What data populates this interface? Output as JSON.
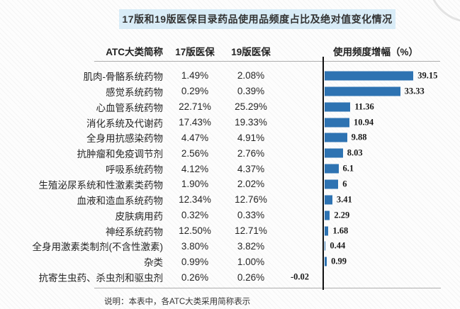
{
  "title": "17版和19版医保目录药品使用品频度占比及绝对值变化情况",
  "footnote": "说明：本表中，各ATC大类采用简称表示",
  "colors": {
    "bar": "#2e73b2",
    "title_background": "#d9ecf7",
    "axis": "#111111",
    "rule": "#adadad"
  },
  "table": {
    "headers": {
      "category": "ATC大类简称",
      "v17": "17版医保",
      "v19": "19版医保",
      "chart": "使用频度增幅（%）"
    },
    "rows": [
      {
        "category": "肌肉-骨骼系统药物",
        "v17": "1.49%",
        "v19": "2.08%",
        "delta": 39.15,
        "delta_label": "39.15"
      },
      {
        "category": "感觉系统药物",
        "v17": "0.29%",
        "v19": "0.39%",
        "delta": 33.33,
        "delta_label": "33.33"
      },
      {
        "category": "心血管系统药物",
        "v17": "22.71%",
        "v19": "25.29%",
        "delta": 11.36,
        "delta_label": "11.36"
      },
      {
        "category": "消化系统及代谢药",
        "v17": "17.43%",
        "v19": "19.33%",
        "delta": 10.94,
        "delta_label": "10.94"
      },
      {
        "category": "全身用抗感染药物",
        "v17": "4.47%",
        "v19": "4.91%",
        "delta": 9.88,
        "delta_label": "9.88"
      },
      {
        "category": "抗肿瘤和免疫调节剂",
        "v17": "2.56%",
        "v19": "2.76%",
        "delta": 8.03,
        "delta_label": "8.03"
      },
      {
        "category": "呼吸系统药物",
        "v17": "4.12%",
        "v19": "4.37%",
        "delta": 6.1,
        "delta_label": "6.1"
      },
      {
        "category": "生殖泌尿系统和性激素类药物",
        "v17": "1.90%",
        "v19": "2.02%",
        "delta": 6,
        "delta_label": "6"
      },
      {
        "category": "血液和造血系统药物",
        "v17": "12.34%",
        "v19": "12.76%",
        "delta": 3.41,
        "delta_label": "3.41"
      },
      {
        "category": "皮肤病用药",
        "v17": "0.32%",
        "v19": "0.33%",
        "delta": 2.29,
        "delta_label": "2.29"
      },
      {
        "category": "神经系统药物",
        "v17": "12.50%",
        "v19": "12.71%",
        "delta": 1.68,
        "delta_label": "1.68"
      },
      {
        "category": "全身用激素类制剂(不含性激素)",
        "v17": "3.80%",
        "v19": "3.82%",
        "delta": 0.44,
        "delta_label": "0.44"
      },
      {
        "category": "杂类",
        "v17": "0.99%",
        "v19": "1.00%",
        "delta": 0.99,
        "delta_label": "0.99"
      },
      {
        "category": "抗寄生虫药、杀虫剂和驱虫剂",
        "v17": "0.26%",
        "v19": "0.26%",
        "delta": -0.02,
        "delta_label": "-0.02"
      }
    ]
  },
  "chart_data": {
    "type": "bar",
    "orientation": "horizontal",
    "title": "17版和19版医保目录药品使用品频度占比及绝对值变化情况",
    "categories": [
      "肌肉-骨骼系统药物",
      "感觉系统药物",
      "心血管系统药物",
      "消化系统及代谢药",
      "全身用抗感染药物",
      "抗肿瘤和免疫调节剂",
      "呼吸系统药物",
      "生殖泌尿系统和性激素类药物",
      "血液和造血系统药物",
      "皮肤病用药",
      "神经系统药物",
      "全身用激素类制剂(不含性激素)",
      "杂类",
      "抗寄生虫药、杀虫剂和驱虫剂"
    ],
    "series": [
      {
        "name": "17版医保",
        "unit": "%",
        "values": [
          1.49,
          0.29,
          22.71,
          17.43,
          4.47,
          2.56,
          4.12,
          1.9,
          12.34,
          0.32,
          12.5,
          3.8,
          0.99,
          0.26
        ]
      },
      {
        "name": "19版医保",
        "unit": "%",
        "values": [
          2.08,
          0.39,
          25.29,
          19.33,
          4.91,
          2.76,
          4.37,
          2.02,
          12.76,
          0.33,
          12.71,
          3.82,
          1.0,
          0.26
        ]
      },
      {
        "name": "使用频度增幅（%）",
        "unit": "%",
        "plotted_as_bars": true,
        "values": [
          39.15,
          33.33,
          11.36,
          10.94,
          9.88,
          8.03,
          6.1,
          6,
          3.41,
          2.29,
          1.68,
          0.44,
          0.99,
          -0.02
        ]
      }
    ],
    "xlabel": "使用频度增幅（%）",
    "ylabel": "ATC大类简称",
    "xlim": [
      -2,
      45
    ],
    "grid": false,
    "legend_position": "none",
    "data_labels": "outside-end",
    "note": "说明：本表中，各ATC大类采用简称表示"
  }
}
